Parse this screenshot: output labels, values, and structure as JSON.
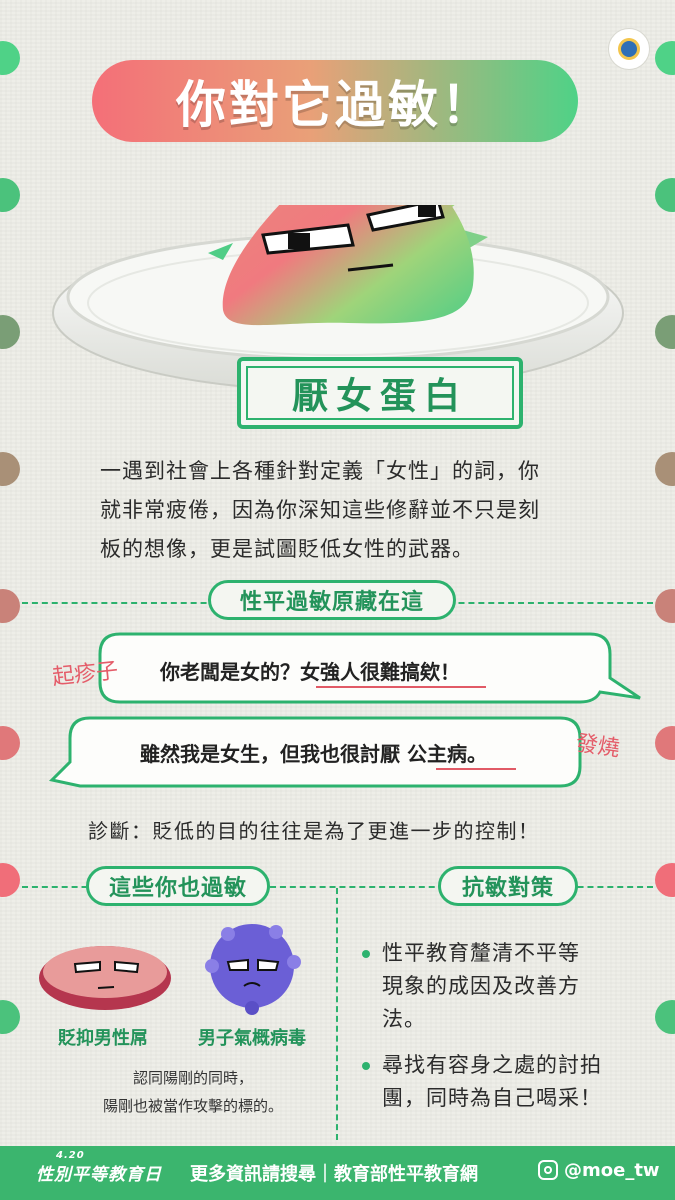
{
  "title": "你對它過敏！",
  "dish_label": "厭女蛋白",
  "description_lines": [
    "一遇到社會上各種針對定義「女性」的詞，你",
    "就非常疲倦，因為你深知這些修辭並不只是刻",
    "板的想像，更是試圖貶低女性的武器。"
  ],
  "section1": {
    "title": "性平過敏原藏在這"
  },
  "bubble1": {
    "prefix": "你老闆是女的？",
    "highlight": "女強人很難搞欸",
    "suffix": "！",
    "note": "起疹子"
  },
  "bubble2": {
    "prefix": "雖然我是女生，但我也很討厭 ",
    "highlight": "公主病",
    "suffix": "。",
    "note": "發燒"
  },
  "diagnosis": "診斷：貶低的目的往往是為了更進一步的控制！",
  "section2": {
    "title": "這些你也過敏"
  },
  "section3": {
    "title": "抗敏對策"
  },
  "characters": [
    {
      "label": "貶抑男性屌"
    },
    {
      "label": "男子氣概病毒"
    }
  ],
  "char_note_lines": [
    "認同陽剛的同時，",
    "陽剛也被當作攻擊的標的。"
  ],
  "strategies": [
    {
      "lines": [
        "性平教育釐清不平等",
        "現象的成因及改善方",
        "法。"
      ]
    },
    {
      "lines": [
        "尋找有容身之處的討拍",
        "團，同時為自己喝采！"
      ]
    }
  ],
  "footer": {
    "brand": "性別平等教育日",
    "brand_sup": "4.20",
    "info": "更多資訊請搜尋｜教育部性平教育網",
    "handle": "@moe_tw"
  },
  "colors": {
    "green": "#2db26e",
    "pink": "#f46f78",
    "footer": "#3bb56e"
  }
}
